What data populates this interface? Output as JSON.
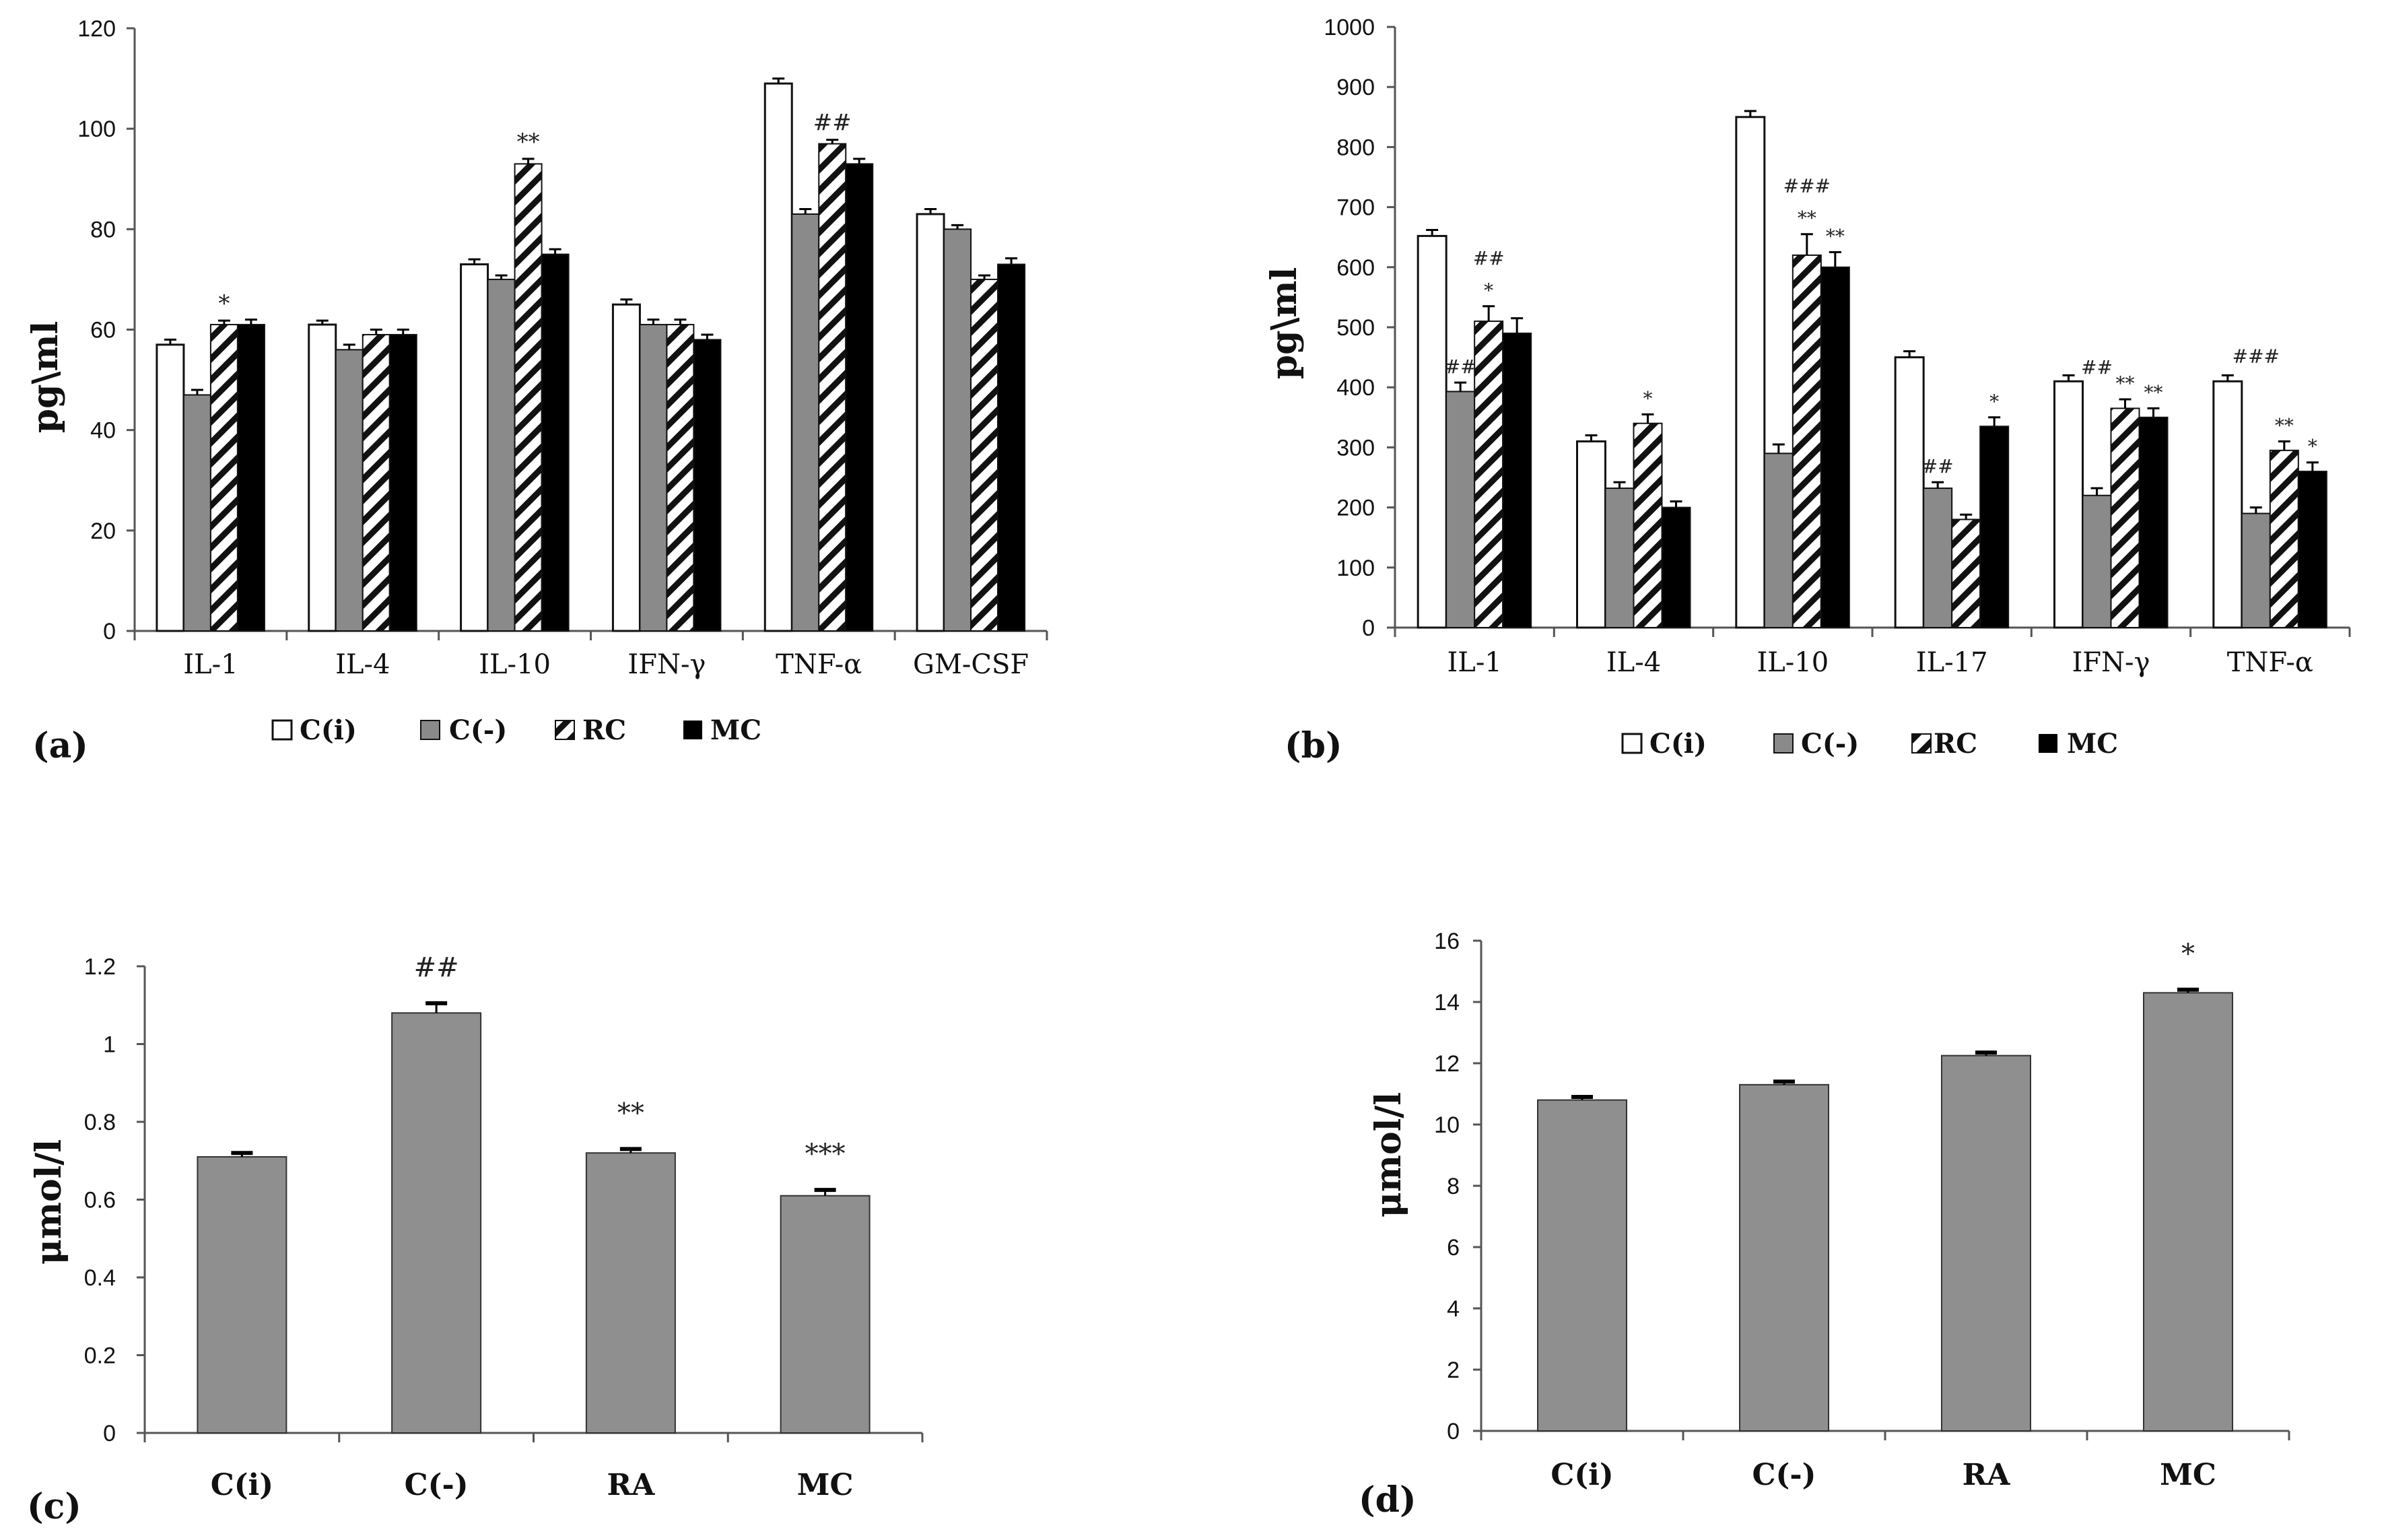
{
  "colors": {
    "ci": "#ffffff",
    "cneg": "#8a8a8a",
    "rc_stripe": "#111111",
    "mc": "#000000",
    "bar_grey": "#8f8f8f",
    "axis": "#555555"
  },
  "chart_data": [
    {
      "id": "a",
      "type": "bar",
      "panel_label": "(a)",
      "ylabel": "pg\\ml",
      "ylim": [
        0,
        120
      ],
      "yticks": [
        0,
        20,
        40,
        60,
        80,
        100,
        120
      ],
      "categories": [
        "IL-1",
        "IL-4",
        "IL-10",
        "IFN-γ",
        "TNF-α",
        "GM-CSF"
      ],
      "series": [
        {
          "name": "C(i)",
          "values": [
            57,
            61,
            73,
            65,
            109,
            83
          ],
          "errors": [
            1,
            0.8,
            1,
            1,
            1,
            1
          ]
        },
        {
          "name": "C(-)",
          "values": [
            47,
            56,
            70,
            61,
            83,
            80
          ],
          "errors": [
            1,
            1,
            0.8,
            1,
            1,
            0.8
          ]
        },
        {
          "name": "RC",
          "values": [
            61,
            59,
            93,
            61,
            97,
            70
          ],
          "errors": [
            0.8,
            1,
            1,
            1,
            0.8,
            0.8
          ]
        },
        {
          "name": "MC",
          "values": [
            61,
            59,
            75,
            58,
            93,
            73
          ],
          "errors": [
            1,
            1,
            1,
            1,
            1,
            1.2
          ]
        }
      ],
      "annotations": [
        {
          "category": 0,
          "series": 2,
          "text": "*"
        },
        {
          "category": 2,
          "series": 2,
          "text": "**"
        },
        {
          "category": 4,
          "series": 2,
          "text": "##"
        }
      ],
      "legend": [
        "C(i)",
        "C(-)",
        "RC",
        "MC"
      ]
    },
    {
      "id": "b",
      "type": "bar",
      "panel_label": "(b)",
      "ylabel": "pg\\ml",
      "ylim": [
        0,
        1000
      ],
      "yticks": [
        0,
        100,
        200,
        300,
        400,
        500,
        600,
        700,
        800,
        900,
        1000
      ],
      "categories": [
        "IL-1",
        "IL-4",
        "IL-10",
        "IL-17",
        "IFN-γ",
        "TNF-α"
      ],
      "series": [
        {
          "name": "C(i)",
          "values": [
            652,
            310,
            850,
            450,
            410,
            410
          ],
          "errors": [
            10,
            10,
            10,
            10,
            10,
            10
          ]
        },
        {
          "name": "C(-)",
          "values": [
            393,
            232,
            290,
            232,
            220,
            190
          ],
          "errors": [
            15,
            10,
            15,
            10,
            12,
            10
          ]
        },
        {
          "name": "RC",
          "values": [
            510,
            340,
            620,
            180,
            365,
            295
          ],
          "errors": [
            25,
            15,
            35,
            8,
            15,
            15
          ]
        },
        {
          "name": "MC",
          "values": [
            490,
            200,
            600,
            335,
            350,
            260
          ],
          "errors": [
            25,
            10,
            25,
            15,
            15,
            15
          ]
        }
      ],
      "annotations": [
        {
          "category": 0,
          "series": 1,
          "text": "##"
        },
        {
          "category": 0,
          "series": 2,
          "text": "*"
        },
        {
          "category": 0,
          "series": 2,
          "text": "##",
          "level": 2
        },
        {
          "category": 1,
          "series": 2,
          "text": "*"
        },
        {
          "category": 2,
          "series": 2,
          "text": "**"
        },
        {
          "category": 2,
          "series": 2,
          "text": "###",
          "level": 2
        },
        {
          "category": 2,
          "series": 3,
          "text": "**"
        },
        {
          "category": 3,
          "series": 1,
          "text": "##"
        },
        {
          "category": 3,
          "series": 3,
          "text": "*"
        },
        {
          "category": 4,
          "series": 1,
          "text": "##",
          "offset": 170
        },
        {
          "category": 4,
          "series": 2,
          "text": "**"
        },
        {
          "category": 4,
          "series": 3,
          "text": "**"
        },
        {
          "category": 5,
          "series": 1,
          "text": "###",
          "offset": 215
        },
        {
          "category": 5,
          "series": 2,
          "text": "**"
        },
        {
          "category": 5,
          "series": 3,
          "text": "*"
        }
      ],
      "legend": [
        "C(i)",
        "C(-)",
        "RC",
        "MC"
      ]
    },
    {
      "id": "c",
      "type": "bar",
      "panel_label": "(c)",
      "ylabel": "μmol/l",
      "ylim": [
        0,
        1.2
      ],
      "yticks": [
        "0",
        "0.2",
        "0.4",
        "0.6",
        "0.8",
        "1",
        "1.2"
      ],
      "categories": [
        "C(i)",
        "C(-)",
        "RA",
        "MC"
      ],
      "values": [
        0.71,
        1.08,
        0.72,
        0.61
      ],
      "errors": [
        0.01,
        0.025,
        0.01,
        0.015
      ],
      "annotations": [
        {
          "category": 1,
          "text": "##"
        },
        {
          "category": 2,
          "text": "**"
        },
        {
          "category": 3,
          "text": "***"
        }
      ]
    },
    {
      "id": "d",
      "type": "bar",
      "panel_label": "(d)",
      "ylabel": "μmol/l",
      "ylim": [
        0,
        16
      ],
      "yticks": [
        "0",
        "2",
        "4",
        "6",
        "8",
        "10",
        "12",
        "14",
        "16"
      ],
      "categories": [
        "C(i)",
        "C(-)",
        "RA",
        "MC"
      ],
      "values": [
        10.8,
        11.3,
        12.25,
        14.3
      ],
      "errors": [
        0.1,
        0.1,
        0.1,
        0.1
      ],
      "annotations": [
        {
          "category": 3,
          "text": "*"
        }
      ]
    }
  ]
}
